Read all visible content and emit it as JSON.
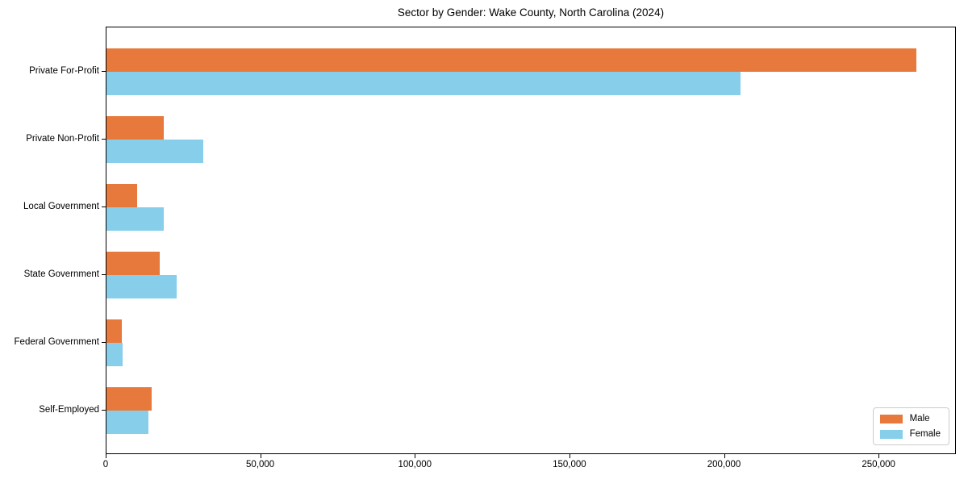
{
  "chart_data": {
    "type": "bar",
    "orientation": "horizontal",
    "title": "Sector by Gender: Wake County, North Carolina (2024)",
    "categories": [
      "Private For-Profit",
      "Private Non-Profit",
      "Local Government",
      "State Government",
      "Federal Government",
      "Self-Employed"
    ],
    "series": [
      {
        "name": "Male",
        "color": "#E8793C",
        "values": [
          262000,
          18500,
          9900,
          17300,
          5000,
          14700
        ]
      },
      {
        "name": "Female",
        "color": "#87CEEB",
        "values": [
          205000,
          31300,
          18600,
          22700,
          5200,
          13500
        ]
      }
    ],
    "xlabel": "",
    "ylabel": "",
    "xlim": [
      0,
      275000
    ],
    "xticks": [
      0,
      50000,
      100000,
      150000,
      200000,
      250000
    ],
    "grid": false,
    "legend_position": "lower right",
    "axis_color": "#000000",
    "background_color": "#ffffff"
  }
}
